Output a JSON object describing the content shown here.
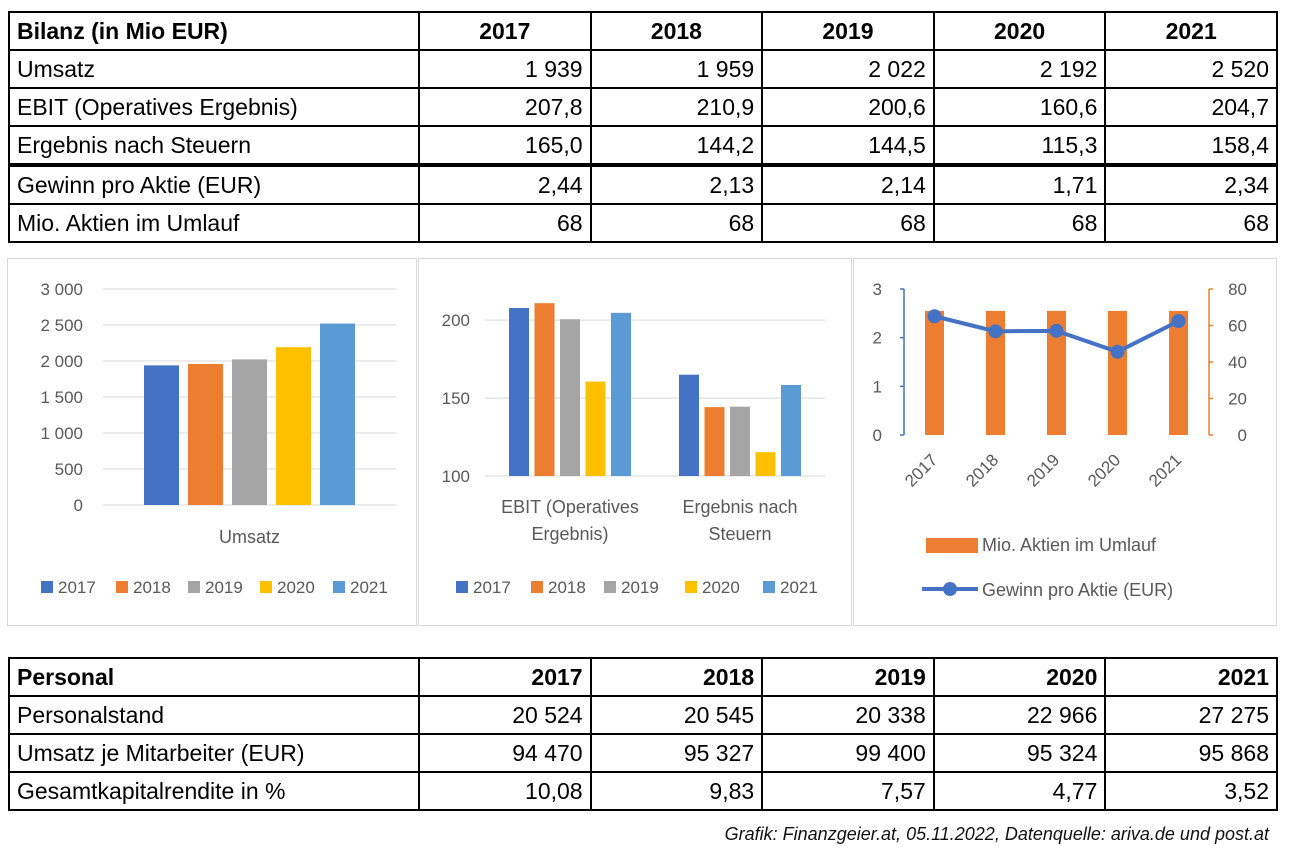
{
  "bilanz_table": {
    "headers": [
      "Bilanz (in Mio EUR)",
      "2017",
      "2018",
      "2019",
      "2020",
      "2021"
    ],
    "rows": [
      {
        "label": "Umsatz",
        "values": [
          "1 939",
          "1 959",
          "2 022",
          "2 192",
          "2 520"
        ]
      },
      {
        "label": "EBIT (Operatives Ergebnis)",
        "values": [
          "207,8",
          "210,9",
          "200,6",
          "160,6",
          "204,7"
        ]
      },
      {
        "label": "Ergebnis nach Steuern",
        "values": [
          "165,0",
          "144,2",
          "144,5",
          "115,3",
          "158,4"
        ]
      },
      {
        "label": "Gewinn pro Aktie (EUR)",
        "values": [
          "2,44",
          "2,13",
          "2,14",
          "1,71",
          "2,34"
        ]
      },
      {
        "label": "Mio. Aktien im Umlauf",
        "values": [
          "68",
          "68",
          "68",
          "68",
          "68"
        ]
      }
    ]
  },
  "personal_table": {
    "headers": [
      "Personal",
      "2017",
      "2018",
      "2019",
      "2020",
      "2021"
    ],
    "rows": [
      {
        "label": "Personalstand",
        "values": [
          "20 524",
          "20 545",
          "20 338",
          "22 966",
          "27 275"
        ]
      },
      {
        "label": "Umsatz je Mitarbeiter (EUR)",
        "values": [
          "94 470",
          "95 327",
          "99 400",
          "95 324",
          "95 868"
        ]
      },
      {
        "label": "Gesamtkapitalrendite in %",
        "values": [
          "10,08",
          "9,83",
          "7,57",
          "4,77",
          "3,52"
        ]
      }
    ]
  },
  "colors": {
    "2017": "#4472c4",
    "2018": "#ed7d31",
    "2019": "#a5a5a5",
    "2020": "#ffc000",
    "2021": "#5b9bd5",
    "grid": "#d9d9d9",
    "axis_text": "#595959"
  },
  "chart_data": [
    {
      "type": "bar",
      "categories": [
        "Umsatz"
      ],
      "series": [
        {
          "name": "2017",
          "values": [
            1939
          ]
        },
        {
          "name": "2018",
          "values": [
            1959
          ]
        },
        {
          "name": "2019",
          "values": [
            2022
          ]
        },
        {
          "name": "2020",
          "values": [
            2192
          ]
        },
        {
          "name": "2021",
          "values": [
            2520
          ]
        }
      ],
      "ylim": [
        0,
        3000
      ],
      "yticks": [
        0,
        500,
        1000,
        1500,
        2000,
        2500,
        3000
      ],
      "ytick_labels": [
        "0",
        "500",
        "1 000",
        "1 500",
        "2 000",
        "2 500",
        "3 000"
      ],
      "grid": true,
      "legend_position": "bottom"
    },
    {
      "type": "bar",
      "categories": [
        "EBIT (Operatives Ergebnis)",
        "Ergebnis nach Steuern"
      ],
      "category_lines": [
        [
          "EBIT (Operatives",
          "Ergebnis)"
        ],
        [
          "Ergebnis nach",
          "Steuern"
        ]
      ],
      "series": [
        {
          "name": "2017",
          "values": [
            207.8,
            165.0
          ]
        },
        {
          "name": "2018",
          "values": [
            210.9,
            144.2
          ]
        },
        {
          "name": "2019",
          "values": [
            200.6,
            144.5
          ]
        },
        {
          "name": "2020",
          "values": [
            160.6,
            115.3
          ]
        },
        {
          "name": "2021",
          "values": [
            204.7,
            158.4
          ]
        }
      ],
      "ylim": [
        100,
        220
      ],
      "yticks": [
        100,
        150,
        200
      ],
      "ytick_labels": [
        "100",
        "150",
        "200"
      ],
      "grid": true,
      "legend_position": "bottom"
    },
    {
      "type": "bar",
      "combo": "bar + line, secondary axis",
      "categories": [
        "2017",
        "2018",
        "2019",
        "2020",
        "2021"
      ],
      "series": [
        {
          "name": "Mio. Aktien im Umlauf",
          "kind": "bar",
          "axis": "right",
          "values": [
            68,
            68,
            68,
            68,
            68
          ]
        },
        {
          "name": "Gewinn pro Aktie (EUR)",
          "kind": "line",
          "axis": "left",
          "values": [
            2.44,
            2.13,
            2.14,
            1.71,
            2.34
          ]
        }
      ],
      "ylim_left": [
        0,
        3
      ],
      "ylim_right": [
        0,
        80
      ],
      "yticks_left": [
        "0",
        "1",
        "2",
        "3"
      ],
      "yticks_right": [
        "0",
        "20",
        "40",
        "60",
        "80"
      ],
      "grid": false,
      "legend_position": "bottom"
    }
  ],
  "caption": "Grafik: Finanzgeier.at, 05.11.2022, Datenquelle: ariva.de und post.at"
}
